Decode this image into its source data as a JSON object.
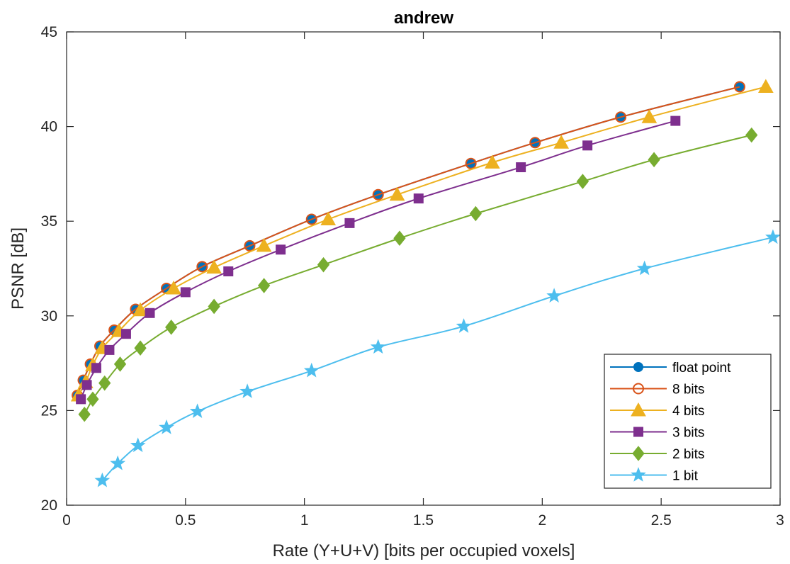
{
  "chart_data": {
    "type": "line",
    "title": "andrew",
    "xlabel": "Rate (Y+U+V) [bits per occupied voxels]",
    "ylabel": "PSNR [dB]",
    "xlim": [
      0,
      3
    ],
    "ylim": [
      20,
      45
    ],
    "xticks": [
      0,
      0.5,
      1,
      1.5,
      2,
      2.5,
      3
    ],
    "yticks": [
      20,
      25,
      30,
      35,
      40,
      45
    ],
    "xtick_labels": [
      "0",
      "0.5",
      "1",
      "1.5",
      "2",
      "2.5",
      "3"
    ],
    "ytick_labels": [
      "20",
      "25",
      "30",
      "35",
      "40",
      "45"
    ],
    "grid": false,
    "legend_position": "bottom-right",
    "series": [
      {
        "name": "float point",
        "color": "#0072BD",
        "marker": "filled-circle",
        "x": [
          0.045,
          0.07,
          0.1,
          0.14,
          0.2,
          0.29,
          0.42,
          0.57,
          0.77,
          1.03,
          1.31,
          1.7,
          1.97,
          2.33,
          2.83
        ],
        "y": [
          25.8,
          26.6,
          27.45,
          28.4,
          29.25,
          30.35,
          31.45,
          32.6,
          33.7,
          35.1,
          36.4,
          38.05,
          39.15,
          40.5,
          42.1
        ]
      },
      {
        "name": "8 bits",
        "color": "#D95319",
        "marker": "open-circle",
        "x": [
          0.045,
          0.07,
          0.1,
          0.14,
          0.2,
          0.29,
          0.42,
          0.57,
          0.77,
          1.03,
          1.31,
          1.7,
          1.97,
          2.33,
          2.83
        ],
        "y": [
          25.8,
          26.6,
          27.45,
          28.4,
          29.25,
          30.35,
          31.45,
          32.6,
          33.7,
          35.1,
          36.4,
          38.05,
          39.15,
          40.5,
          42.1
        ]
      },
      {
        "name": "4 bits",
        "color": "#EDB120",
        "marker": "triangle",
        "x": [
          0.05,
          0.08,
          0.11,
          0.15,
          0.22,
          0.31,
          0.45,
          0.62,
          0.83,
          1.1,
          1.39,
          1.79,
          2.08,
          2.45,
          2.94
        ],
        "y": [
          25.8,
          26.5,
          27.4,
          28.3,
          29.2,
          30.3,
          31.45,
          32.55,
          33.7,
          35.1,
          36.4,
          38.1,
          39.15,
          40.5,
          42.1
        ]
      },
      {
        "name": "3 bits",
        "color": "#7E2F8E",
        "marker": "square",
        "x": [
          0.06,
          0.085,
          0.125,
          0.18,
          0.25,
          0.35,
          0.5,
          0.68,
          0.9,
          1.19,
          1.48,
          1.91,
          2.19,
          2.56
        ],
        "y": [
          25.6,
          26.35,
          27.25,
          28.2,
          29.05,
          30.15,
          31.25,
          32.35,
          33.5,
          34.9,
          36.2,
          37.85,
          39.0,
          40.3
        ]
      },
      {
        "name": "2 bits",
        "color": "#77AC30",
        "marker": "diamond",
        "x": [
          0.075,
          0.11,
          0.16,
          0.225,
          0.31,
          0.44,
          0.62,
          0.83,
          1.08,
          1.4,
          1.72,
          2.17,
          2.47,
          2.88
        ],
        "y": [
          24.8,
          25.6,
          26.45,
          27.45,
          28.3,
          29.4,
          30.5,
          31.6,
          32.7,
          34.1,
          35.4,
          37.1,
          38.25,
          39.55
        ]
      },
      {
        "name": "1 bit",
        "color": "#4DBEEE",
        "marker": "star",
        "x": [
          0.15,
          0.215,
          0.3,
          0.42,
          0.55,
          0.76,
          1.03,
          1.31,
          1.67,
          2.05,
          2.43,
          2.97
        ],
        "y": [
          21.3,
          22.2,
          23.15,
          24.1,
          24.95,
          26.0,
          27.1,
          28.35,
          29.45,
          31.05,
          32.5,
          34.15
        ]
      }
    ]
  }
}
